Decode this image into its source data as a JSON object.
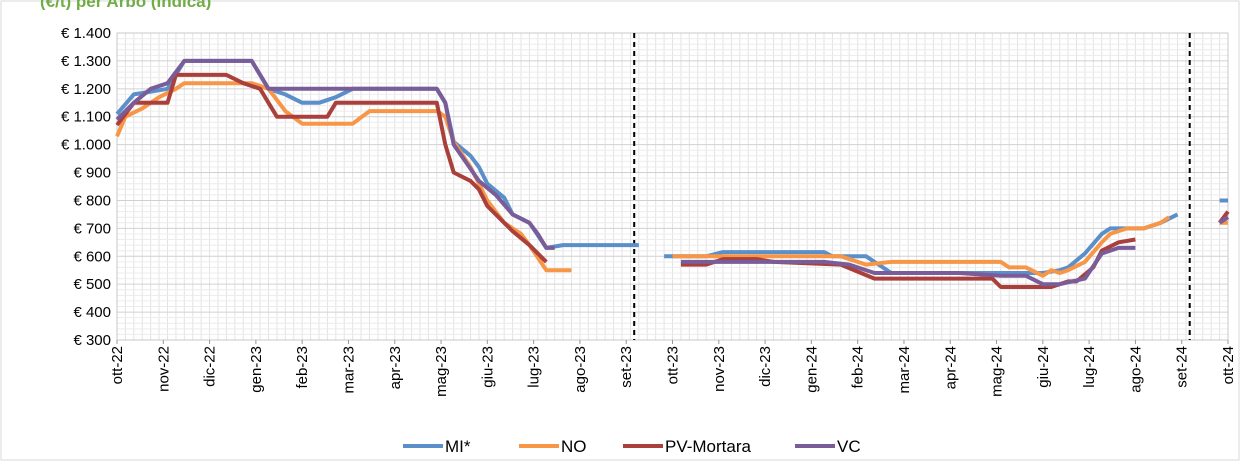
{
  "chart_data": {
    "type": "line",
    "title": "",
    "title_fragment": "(€/t) per Arbo (Indica)",
    "xlabel": "",
    "ylabel": "",
    "ylim": [
      300,
      1400
    ],
    "y_ticks": [
      "€ 300",
      "€ 400",
      "€ 500",
      "€ 600",
      "€ 700",
      "€ 800",
      "€ 900",
      "€ 1.000",
      "€ 1.100",
      "€ 1.200",
      "€ 1.300",
      "€ 1.400"
    ],
    "y_tick_values": [
      300,
      400,
      500,
      600,
      700,
      800,
      900,
      1000,
      1100,
      1200,
      1300,
      1400
    ],
    "x_ticks": [
      "ott-22",
      "nov-22",
      "dic-22",
      "gen-23",
      "feb-23",
      "mar-23",
      "apr-23",
      "mag-23",
      "giu-23",
      "lug-23",
      "ago-23",
      "set-23",
      "ott-23",
      "nov-23",
      "dic-23",
      "gen-24",
      "feb-24",
      "mar-24",
      "apr-24",
      "mag-24",
      "giu-24",
      "lug-24",
      "ago-24",
      "set-24",
      "ott-24"
    ],
    "x_index": "week number from first week of ott-22; ticks every ~4.3 weeks",
    "season_separators": [
      "set-23",
      "set-24"
    ],
    "grid": true,
    "legend_position": "bottom",
    "colors": {
      "MI*": "#5b8fc9",
      "NO": "#f79646",
      "PV-Mortara": "#a9403c",
      "VC": "#7a5c99"
    },
    "series": [
      {
        "name": "MI*",
        "segments": [
          [
            [
              0,
              1110
            ],
            [
              2,
              1180
            ],
            [
              4,
              1190
            ],
            [
              6,
              1200
            ],
            [
              8,
              1300
            ],
            [
              16,
              1300
            ],
            [
              18,
              1200
            ],
            [
              20,
              1180
            ],
            [
              22,
              1150
            ],
            [
              24,
              1150
            ],
            [
              26,
              1170
            ],
            [
              28,
              1200
            ],
            [
              38,
              1200
            ],
            [
              39,
              1150
            ],
            [
              40,
              1010
            ],
            [
              42,
              960
            ],
            [
              43,
              920
            ],
            [
              44,
              860
            ],
            [
              46,
              810
            ],
            [
              47,
              750
            ],
            [
              49,
              720
            ],
            [
              51,
              630
            ],
            [
              53,
              640
            ],
            [
              58,
              640
            ],
            [
              62,
              640
            ]
          ],
          [
            [
              65,
              600
            ],
            [
              66,
              600
            ],
            [
              70,
              600
            ],
            [
              72,
              615
            ],
            [
              78,
              615
            ],
            [
              84,
              615
            ],
            [
              85,
              600
            ],
            [
              89,
              600
            ],
            [
              92,
              540
            ],
            [
              100,
              540
            ],
            [
              108,
              540
            ],
            [
              110,
              540
            ],
            [
              112,
              550
            ],
            [
              113,
              560
            ],
            [
              115,
              610
            ],
            [
              117,
              680
            ],
            [
              118,
              700
            ],
            [
              122,
              700
            ],
            [
              124,
              720
            ],
            [
              126,
              750
            ]
          ],
          [
            [
              131,
              800
            ],
            [
              132,
              800
            ]
          ]
        ]
      },
      {
        "name": "NO",
        "segments": [
          [
            [
              0,
              1030
            ],
            [
              1,
              1100
            ],
            [
              3,
              1130
            ],
            [
              5,
              1170
            ],
            [
              7,
              1200
            ],
            [
              8,
              1220
            ],
            [
              16,
              1220
            ],
            [
              18,
              1200
            ],
            [
              20,
              1120
            ],
            [
              22,
              1075
            ],
            [
              26,
              1075
            ],
            [
              28,
              1075
            ],
            [
              30,
              1120
            ],
            [
              38,
              1120
            ],
            [
              39,
              1100
            ],
            [
              40,
              1010
            ],
            [
              42,
              920
            ],
            [
              44,
              800
            ],
            [
              46,
              720
            ],
            [
              48,
              680
            ],
            [
              49,
              640
            ],
            [
              51,
              550
            ],
            [
              54,
              550
            ]
          ],
          [
            [
              66,
              600
            ],
            [
              73,
              600
            ],
            [
              79,
              600
            ],
            [
              86,
              600
            ],
            [
              89,
              570
            ],
            [
              92,
              580
            ],
            [
              95,
              580
            ],
            [
              100,
              580
            ],
            [
              105,
              580
            ],
            [
              106,
              560
            ],
            [
              108,
              560
            ],
            [
              110,
              530
            ],
            [
              111,
              550
            ],
            [
              112,
              540
            ],
            [
              113,
              550
            ],
            [
              115,
              580
            ],
            [
              117,
              650
            ],
            [
              118,
              680
            ],
            [
              120,
              700
            ],
            [
              122,
              700
            ],
            [
              124,
              720
            ],
            [
              125,
              740
            ]
          ],
          [
            [
              131,
              720
            ],
            [
              132,
              720
            ]
          ]
        ]
      },
      {
        "name": "PV-Mortara",
        "segments": [
          [
            [
              0,
              1070
            ],
            [
              2,
              1150
            ],
            [
              4,
              1150
            ],
            [
              6,
              1150
            ],
            [
              7,
              1250
            ],
            [
              10,
              1250
            ],
            [
              13,
              1250
            ],
            [
              15,
              1220
            ],
            [
              17,
              1200
            ],
            [
              18,
              1150
            ],
            [
              19,
              1100
            ],
            [
              22,
              1100
            ],
            [
              25,
              1100
            ],
            [
              26,
              1150
            ],
            [
              28,
              1150
            ],
            [
              38,
              1150
            ],
            [
              39,
              1000
            ],
            [
              40,
              900
            ],
            [
              42,
              870
            ],
            [
              43,
              840
            ],
            [
              44,
              780
            ],
            [
              46,
              720
            ],
            [
              47,
              690
            ],
            [
              49,
              640
            ],
            [
              51,
              580
            ]
          ],
          [
            [
              67,
              570
            ],
            [
              70,
              570
            ],
            [
              72,
              590
            ],
            [
              76,
              590
            ],
            [
              78,
              580
            ],
            [
              86,
              570
            ],
            [
              90,
              520
            ],
            [
              94,
              520
            ],
            [
              100,
              520
            ],
            [
              104,
              520
            ],
            [
              105,
              490
            ],
            [
              110,
              490
            ],
            [
              111,
              490
            ],
            [
              113,
              510
            ],
            [
              114,
              510
            ],
            [
              116,
              560
            ],
            [
              117,
              620
            ],
            [
              119,
              650
            ],
            [
              121,
              660
            ]
          ],
          [
            [
              131,
              720
            ],
            [
              132,
              760
            ]
          ]
        ]
      },
      {
        "name": "VC",
        "segments": [
          [
            [
              0,
              1090
            ],
            [
              2,
              1150
            ],
            [
              4,
              1200
            ],
            [
              6,
              1220
            ],
            [
              8,
              1300
            ],
            [
              10,
              1300
            ],
            [
              16,
              1300
            ],
            [
              18,
              1200
            ],
            [
              22,
              1200
            ],
            [
              28,
              1200
            ],
            [
              30,
              1200
            ],
            [
              38,
              1200
            ],
            [
              39,
              1150
            ],
            [
              40,
              1000
            ],
            [
              43,
              870
            ],
            [
              45,
              820
            ],
            [
              47,
              750
            ],
            [
              49,
              720
            ],
            [
              50,
              680
            ],
            [
              51,
              630
            ],
            [
              52,
              630
            ]
          ],
          [
            [
              67,
              580
            ],
            [
              70,
              580
            ],
            [
              72,
              580
            ],
            [
              78,
              580
            ],
            [
              84,
              580
            ],
            [
              87,
              570
            ],
            [
              90,
              540
            ],
            [
              95,
              540
            ],
            [
              100,
              540
            ],
            [
              105,
              530
            ],
            [
              108,
              530
            ],
            [
              110,
              500
            ],
            [
              112,
              500
            ],
            [
              115,
              520
            ],
            [
              117,
              610
            ],
            [
              119,
              630
            ],
            [
              121,
              630
            ]
          ],
          [
            [
              131,
              720
            ],
            [
              132,
              740
            ]
          ]
        ]
      }
    ]
  }
}
